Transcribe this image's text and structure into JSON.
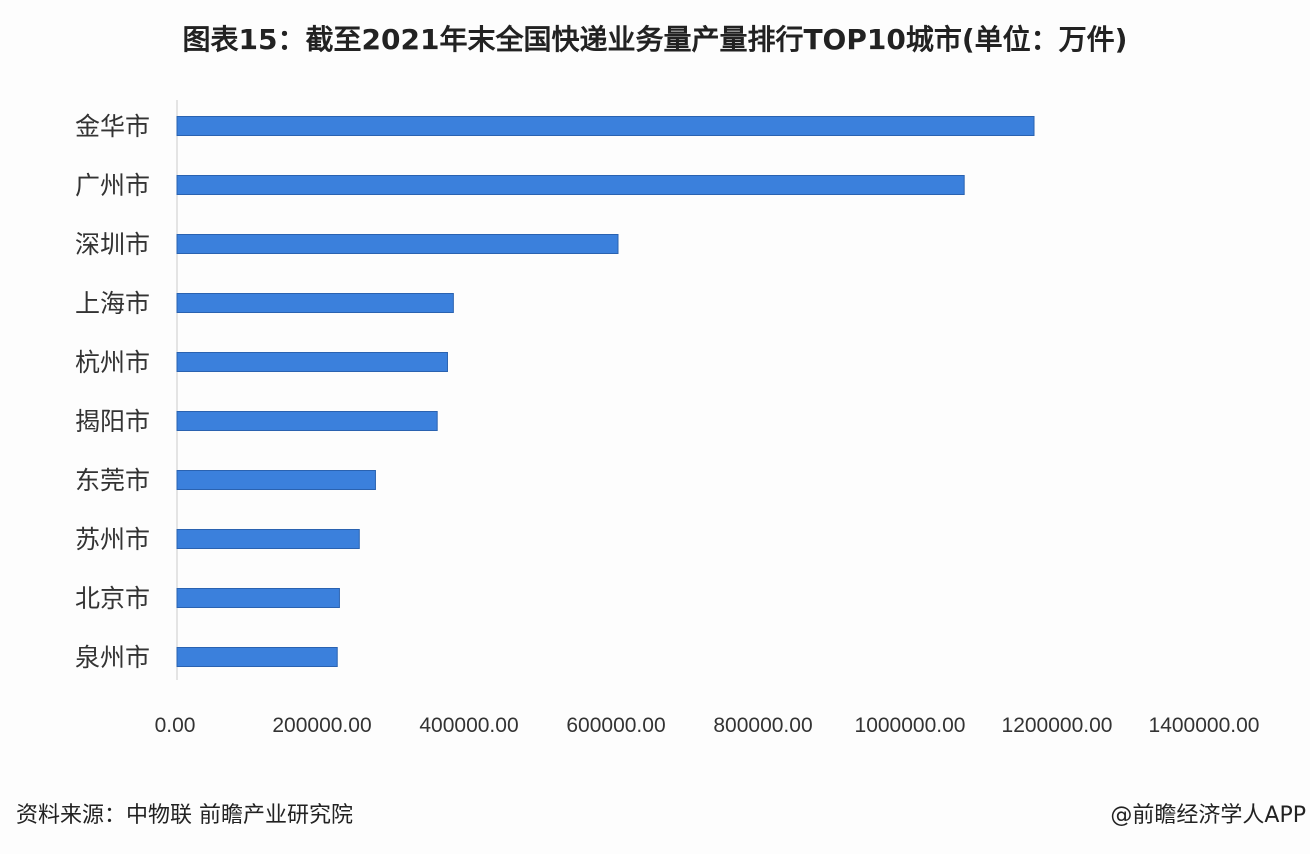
{
  "chart_data": {
    "type": "bar",
    "orientation": "horizontal",
    "title": "图表15：截至2021年末全国快递业务量产量排行TOP10城市(单位：万件)",
    "categories": [
      "金华市",
      "广州市",
      "深圳市",
      "上海市",
      "杭州市",
      "揭阳市",
      "东莞市",
      "苏州市",
      "北京市",
      "泉州市"
    ],
    "values": [
      1166000,
      1071000,
      600000,
      376000,
      368000,
      354000,
      270000,
      248000,
      221000,
      218000
    ],
    "xlim": [
      0,
      1400000
    ],
    "xticks": [
      "0.00",
      "200000.00",
      "400000.00",
      "600000.00",
      "800000.00",
      "1000000.00",
      "1200000.00",
      "1400000.00"
    ],
    "grid": false,
    "bar_color": "#3b80dc"
  },
  "footer": {
    "source": "资料来源：中物联 前瞻产业研究院",
    "credit": "@前瞻经济学人APP"
  }
}
